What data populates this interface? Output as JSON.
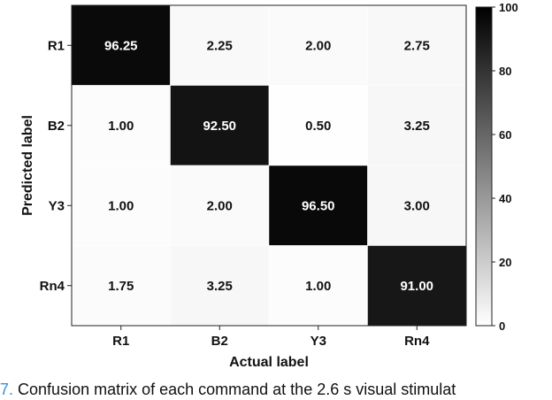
{
  "chart_data": {
    "type": "heatmap",
    "x_categories": [
      "R1",
      "B2",
      "Y3",
      "Rn4"
    ],
    "y_categories": [
      "R1",
      "B2",
      "Y3",
      "Rn4"
    ],
    "values": [
      [
        96.25,
        2.25,
        2.0,
        2.75
      ],
      [
        1.0,
        92.5,
        0.5,
        3.25
      ],
      [
        1.0,
        2.0,
        96.5,
        3.0
      ],
      [
        1.75,
        3.25,
        1.0,
        91.0
      ]
    ],
    "value_labels": [
      [
        "96.25",
        "2.25",
        "2.00",
        "2.75"
      ],
      [
        "1.00",
        "92.50",
        "0.50",
        "3.25"
      ],
      [
        "1.00",
        "2.00",
        "96.50",
        "3.00"
      ],
      [
        "1.75",
        "3.25",
        "1.00",
        "91.00"
      ]
    ],
    "xlabel": "Actual label",
    "ylabel": "Predicted label",
    "colorbar": {
      "range": [
        0,
        100
      ],
      "ticks": [
        "0",
        "20",
        "40",
        "60",
        "80",
        "100"
      ],
      "colormap": "white-to-black"
    }
  },
  "caption": {
    "number": "7.",
    "text": "Confusion matrix of each command at the 2.6 s visual stimulat"
  }
}
